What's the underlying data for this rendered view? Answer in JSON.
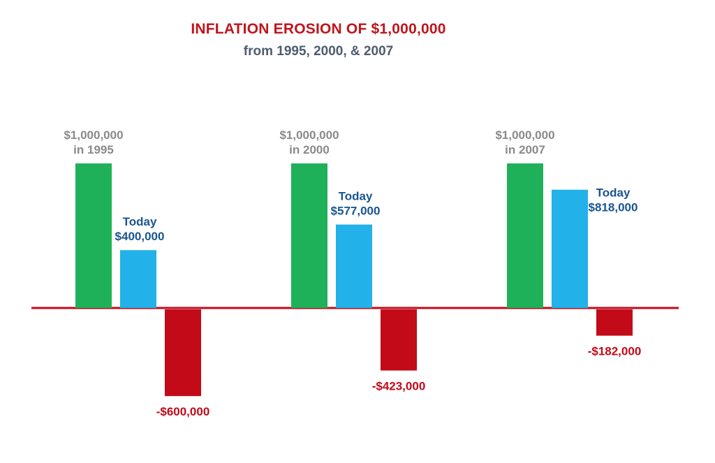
{
  "title": "INFLATION EROSION OF $1,000,000",
  "subtitle": "from 1995, 2000, & 2007",
  "colors": {
    "original": "#1fb15a",
    "today": "#23b1ea",
    "loss": "#c20a18",
    "baseline": "#c20a18",
    "original_label": "#8a8a8a",
    "today_label": "#1a5590",
    "loss_label": "#c20a18"
  },
  "chart_data": {
    "type": "bar",
    "categories": [
      "1995",
      "2000",
      "2007"
    ],
    "ylim": [
      -650000,
      1100000
    ],
    "grid": false,
    "series": [
      {
        "key": "original",
        "values": [
          1000000,
          1000000,
          1000000
        ]
      },
      {
        "key": "today",
        "values": [
          400000,
          577000,
          818000
        ]
      },
      {
        "key": "loss",
        "values": [
          -600000,
          -423000,
          -182000
        ]
      }
    ],
    "data_labels": [
      {
        "original": [
          "$1,000,000",
          "in 1995"
        ],
        "today": [
          "Today",
          "$400,000"
        ],
        "loss": [
          "-$600,000"
        ]
      },
      {
        "original": [
          "$1,000,000",
          "in 2000"
        ],
        "today": [
          "Today",
          "$577,000"
        ],
        "loss": [
          "-$423,000"
        ]
      },
      {
        "original": [
          "$1,000,000",
          "in 2007"
        ],
        "today": [
          "Today",
          "$818,000"
        ],
        "loss": [
          "-$182,000"
        ]
      }
    ]
  }
}
